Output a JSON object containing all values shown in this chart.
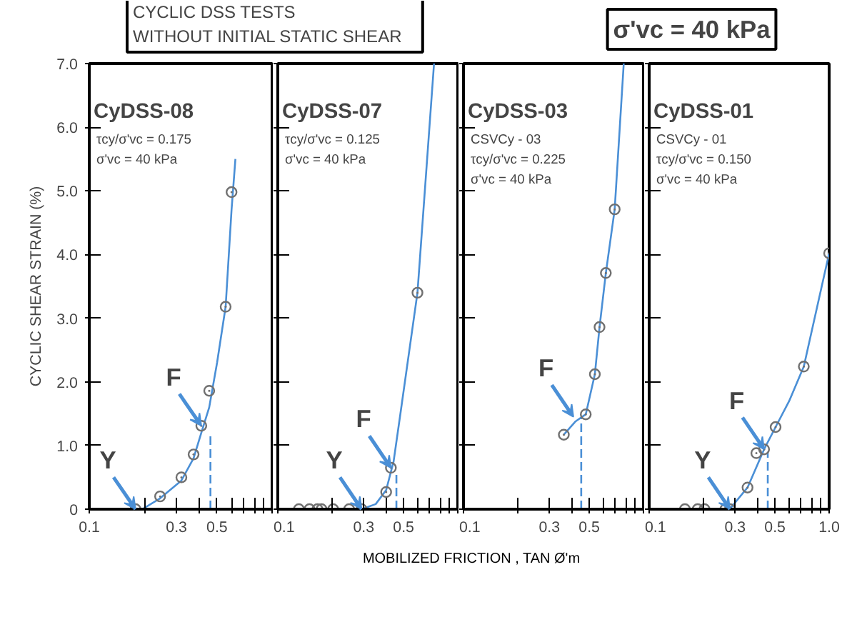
{
  "chart_data": [
    {
      "type": "other",
      "annotations": [
        "CYCLIC  DSS  TESTS\nWITHOUT  INITIAL  STATIC  SHEAR",
        "σ'vc = 40 kPa",
        "MOBILIZED FRICTION , TAN Ø'm"
      ]
    },
    {
      "type": "scatter",
      "title": "CyDSS-08",
      "ylabel": "CYCLIC SHEAR STRAIN (%)",
      "annotations": [
        "τcy/σ'vc = 0.175",
        "σ'vc = 40 kPa",
        {
          "text": "Y",
          "x": 0.179,
          "y": 0
        },
        {
          "text": "F",
          "x": 0.41,
          "y": 1.31
        }
      ],
      "log": "x",
      "xlim": [
        0.1,
        1.0
      ],
      "ylim": [
        0,
        7
      ],
      "xticks": [
        0.1,
        {
          "value": 0.2,
          "label": null
        },
        0.3,
        {
          "value": 0.4,
          "label": null
        },
        0.5,
        {
          "value": 0.6,
          "label": null
        },
        {
          "value": 0.7,
          "label": null
        },
        {
          "value": 0.8,
          "label": null
        },
        {
          "value": 0.9,
          "label": null
        },
        {
          "value": 1.0,
          "label": null
        }
      ],
      "yticks": [
        0,
        {
          "value": 1,
          "label": "1.0"
        },
        {
          "value": 2,
          "label": "2.0"
        },
        {
          "value": 3,
          "label": "3.0"
        },
        {
          "value": 4,
          "label": "4.0"
        },
        {
          "value": 5,
          "label": "5.0"
        },
        {
          "value": 6,
          "label": "6.0"
        },
        {
          "value": 7,
          "label": "7.0"
        }
      ],
      "grid": false,
      "marker": "circle",
      "series": [
        {
          "type": "line",
          "color": "#4a8fd6",
          "x": [
            0.195,
            0.244,
            0.319,
            0.372,
            0.41,
            0.453,
            0.5,
            0.557,
            0.6,
            0.63
          ],
          "values": [
            0,
            0.17,
            0.45,
            0.8,
            1.2,
            1.6,
            2.3,
            3.18,
            4.7,
            5.5
          ],
          "line_style": "solid",
          "marker": "none"
        },
        {
          "type": "line",
          "color": "#4a8fd6",
          "x": [
            0.46,
            0.46
          ],
          "values": [
            0,
            1.2
          ],
          "line_style": "dashed",
          "marker": "none"
        },
        {
          "type": "scatter",
          "color": "#707070",
          "x": [
            0.179,
            0.244,
            0.319,
            0.372,
            0.41,
            0.453,
            0.557,
            0.6
          ],
          "values": [
            0,
            0.2,
            0.5,
            0.86,
            1.31,
            1.86,
            3.18,
            4.98
          ]
        }
      ]
    },
    {
      "type": "scatter",
      "title": "CyDSS-07",
      "annotations": [
        "τcy/σ'vc = 0.125",
        "σ'vc = 40 kPa",
        {
          "text": "Y",
          "x": 0.292,
          "y": 0
        },
        {
          "text": "F",
          "x": 0.425,
          "y": 0.65
        }
      ],
      "log": "x",
      "xlim": [
        0.1,
        1.0
      ],
      "ylim": [
        0,
        7
      ],
      "tick_labels": "x",
      "xticks": [
        0.1,
        {
          "value": 0.2,
          "label": null
        },
        0.3,
        {
          "value": 0.4,
          "label": null
        },
        0.5,
        {
          "value": 0.6,
          "label": null
        },
        {
          "value": 0.7,
          "label": null
        },
        {
          "value": 0.8,
          "label": null
        },
        {
          "value": 0.9,
          "label": null
        },
        {
          "value": 1.0,
          "label": null
        }
      ],
      "yticks": [
        0,
        1,
        2,
        3,
        4,
        5,
        6,
        7
      ],
      "grid": false,
      "marker": "circle",
      "series": [
        {
          "type": "line",
          "color": "#4a8fd6",
          "x": [
            0.292,
            0.35,
            0.4,
            0.44,
            0.48,
            0.597,
            0.738
          ],
          "values": [
            0,
            0.08,
            0.3,
            0.75,
            1.5,
            3.4,
            7.0
          ],
          "line_style": "solid",
          "marker": "none"
        },
        {
          "type": "line",
          "color": "#4a8fd6",
          "x": [
            0.456,
            0.456
          ],
          "values": [
            0,
            0.6
          ],
          "line_style": "dashed",
          "marker": "none"
        },
        {
          "type": "scatter",
          "color": "#707070",
          "x": [
            0.131,
            0.15,
            0.166,
            0.175,
            0.203,
            0.249,
            0.292,
            0.4,
            0.425,
            0.597
          ],
          "values": [
            0,
            0,
            0,
            0,
            0,
            0,
            0,
            0.27,
            0.65,
            3.4
          ]
        }
      ]
    },
    {
      "type": "scatter",
      "title": "CyDSS-03",
      "annotations": [
        "CSVCy - 03",
        "τcy/σ'vc = 0.225",
        "σ'vc = 40 kPa",
        {
          "text": "F",
          "x": 0.408,
          "y": 1.45
        }
      ],
      "log": "x",
      "xlim": [
        0.1,
        1.0
      ],
      "ylim": [
        0,
        7
      ],
      "tick_labels": "x",
      "xticks": [
        0.1,
        {
          "value": 0.2,
          "label": null
        },
        0.3,
        {
          "value": 0.4,
          "label": null
        },
        0.5,
        {
          "value": 0.6,
          "label": null
        },
        {
          "value": 0.7,
          "label": null
        },
        {
          "value": 0.8,
          "label": null
        },
        {
          "value": 0.9,
          "label": null
        },
        {
          "value": 1.0,
          "label": null
        }
      ],
      "yticks": [
        0,
        1,
        2,
        3,
        4,
        5,
        6,
        7
      ],
      "grid": false,
      "marker": "circle",
      "series": [
        {
          "type": "line",
          "color": "#4a8fd6",
          "x": [
            0.361,
            0.42,
            0.478,
            0.537,
            0.57,
            0.618,
            0.692,
            0.777
          ],
          "values": [
            1.17,
            1.38,
            1.49,
            2.12,
            2.86,
            3.71,
            4.71,
            7.0
          ],
          "line_style": "solid",
          "marker": "none"
        },
        {
          "type": "line",
          "color": "#4a8fd6",
          "x": [
            0.451,
            0.451
          ],
          "values": [
            0,
            1.45
          ],
          "line_style": "dashed",
          "marker": "none"
        },
        {
          "type": "scatter",
          "color": "#707070",
          "x": [
            0.361,
            0.478,
            0.537,
            0.57,
            0.618,
            0.692
          ],
          "values": [
            1.17,
            1.49,
            2.12,
            2.86,
            3.71,
            4.71
          ]
        }
      ]
    },
    {
      "type": "scatter",
      "title": "CyDSS-01",
      "annotations": [
        "CSVCy - 01",
        "τcy/σ'vc = 0.150",
        "σ'vc = 40 kPa",
        {
          "text": "Y",
          "x": 0.281,
          "y": 0
        },
        {
          "text": "F",
          "x": 0.435,
          "y": 0.94
        }
      ],
      "log": "x",
      "xlim": [
        0.1,
        1.0
      ],
      "ylim": [
        0,
        7
      ],
      "tick_labels": "x",
      "xticks": [
        0.1,
        {
          "value": 0.2,
          "label": null
        },
        0.3,
        {
          "value": 0.4,
          "label": null
        },
        0.5,
        {
          "value": 0.6,
          "label": null
        },
        {
          "value": 0.7,
          "label": null
        },
        {
          "value": 0.8,
          "label": null
        },
        {
          "value": 0.9,
          "label": null
        },
        {
          "value": 1.0,
          "label": "1.0"
        }
      ],
      "yticks": [
        0,
        1,
        2,
        3,
        4,
        5,
        6,
        7
      ],
      "grid": false,
      "marker": "circle",
      "series": [
        {
          "type": "line",
          "color": "#4a8fd6",
          "x": [
            0.28,
            0.352,
            0.435,
            0.504,
            0.6,
            0.723,
            1.0
          ],
          "values": [
            0,
            0.34,
            0.94,
            1.29,
            1.7,
            2.24,
            4.02
          ],
          "line_style": "solid",
          "marker": "none"
        },
        {
          "type": "line",
          "color": "#4a8fd6",
          "x": [
            0.456,
            0.456
          ],
          "values": [
            0,
            0.9
          ],
          "line_style": "dashed",
          "marker": "none"
        },
        {
          "type": "scatter",
          "color": "#707070",
          "x": [
            0.158,
            0.186,
            0.203,
            0.265,
            0.281,
            0.352,
            0.394,
            0.435,
            0.504,
            0.723,
            1.0
          ],
          "values": [
            0,
            0,
            0,
            0,
            0,
            0.34,
            0.88,
            0.94,
            1.29,
            2.24,
            4.02
          ]
        }
      ]
    }
  ]
}
